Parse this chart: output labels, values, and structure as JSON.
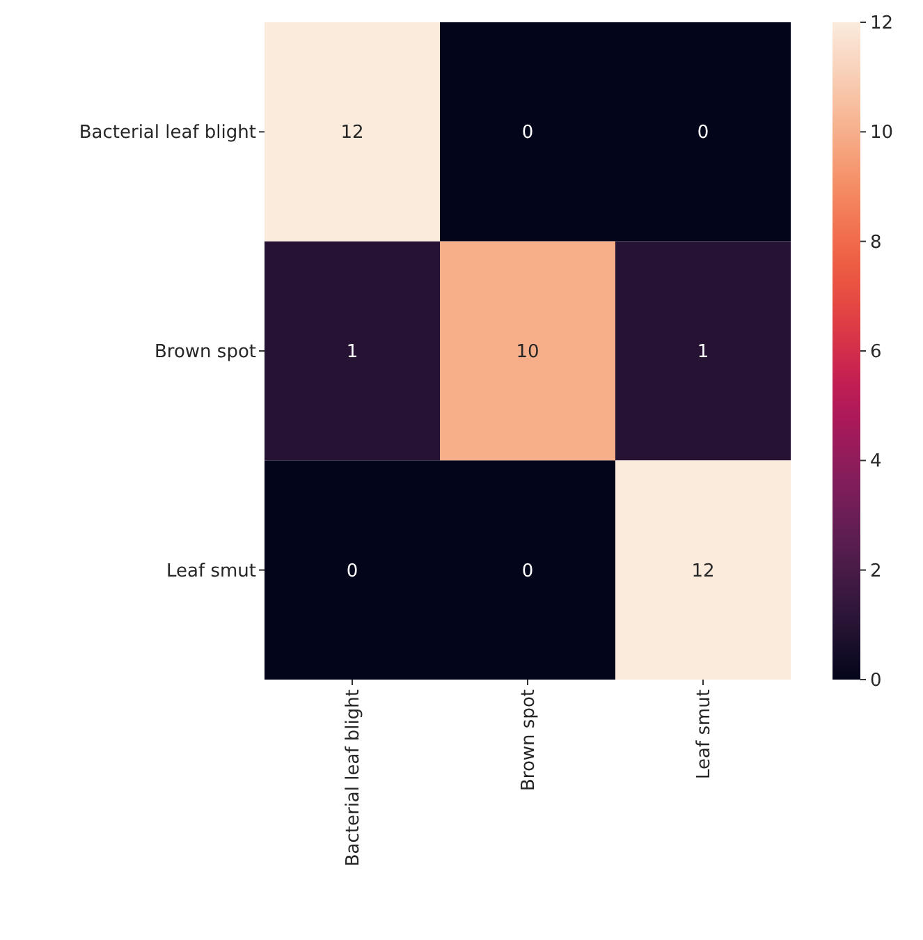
{
  "chart_data": {
    "type": "heatmap",
    "categories": [
      "Bacterial leaf blight",
      "Brown spot",
      "Leaf smut"
    ],
    "y_categories": [
      "Bacterial leaf blight",
      "Brown spot",
      "Leaf smut"
    ],
    "cells": [
      [
        12,
        0,
        0
      ],
      [
        1,
        10,
        1
      ],
      [
        0,
        0,
        12
      ]
    ],
    "data_labels": true,
    "clim": [
      0,
      12
    ],
    "cticks": [
      0,
      2,
      4,
      6,
      8,
      10,
      12
    ]
  }
}
